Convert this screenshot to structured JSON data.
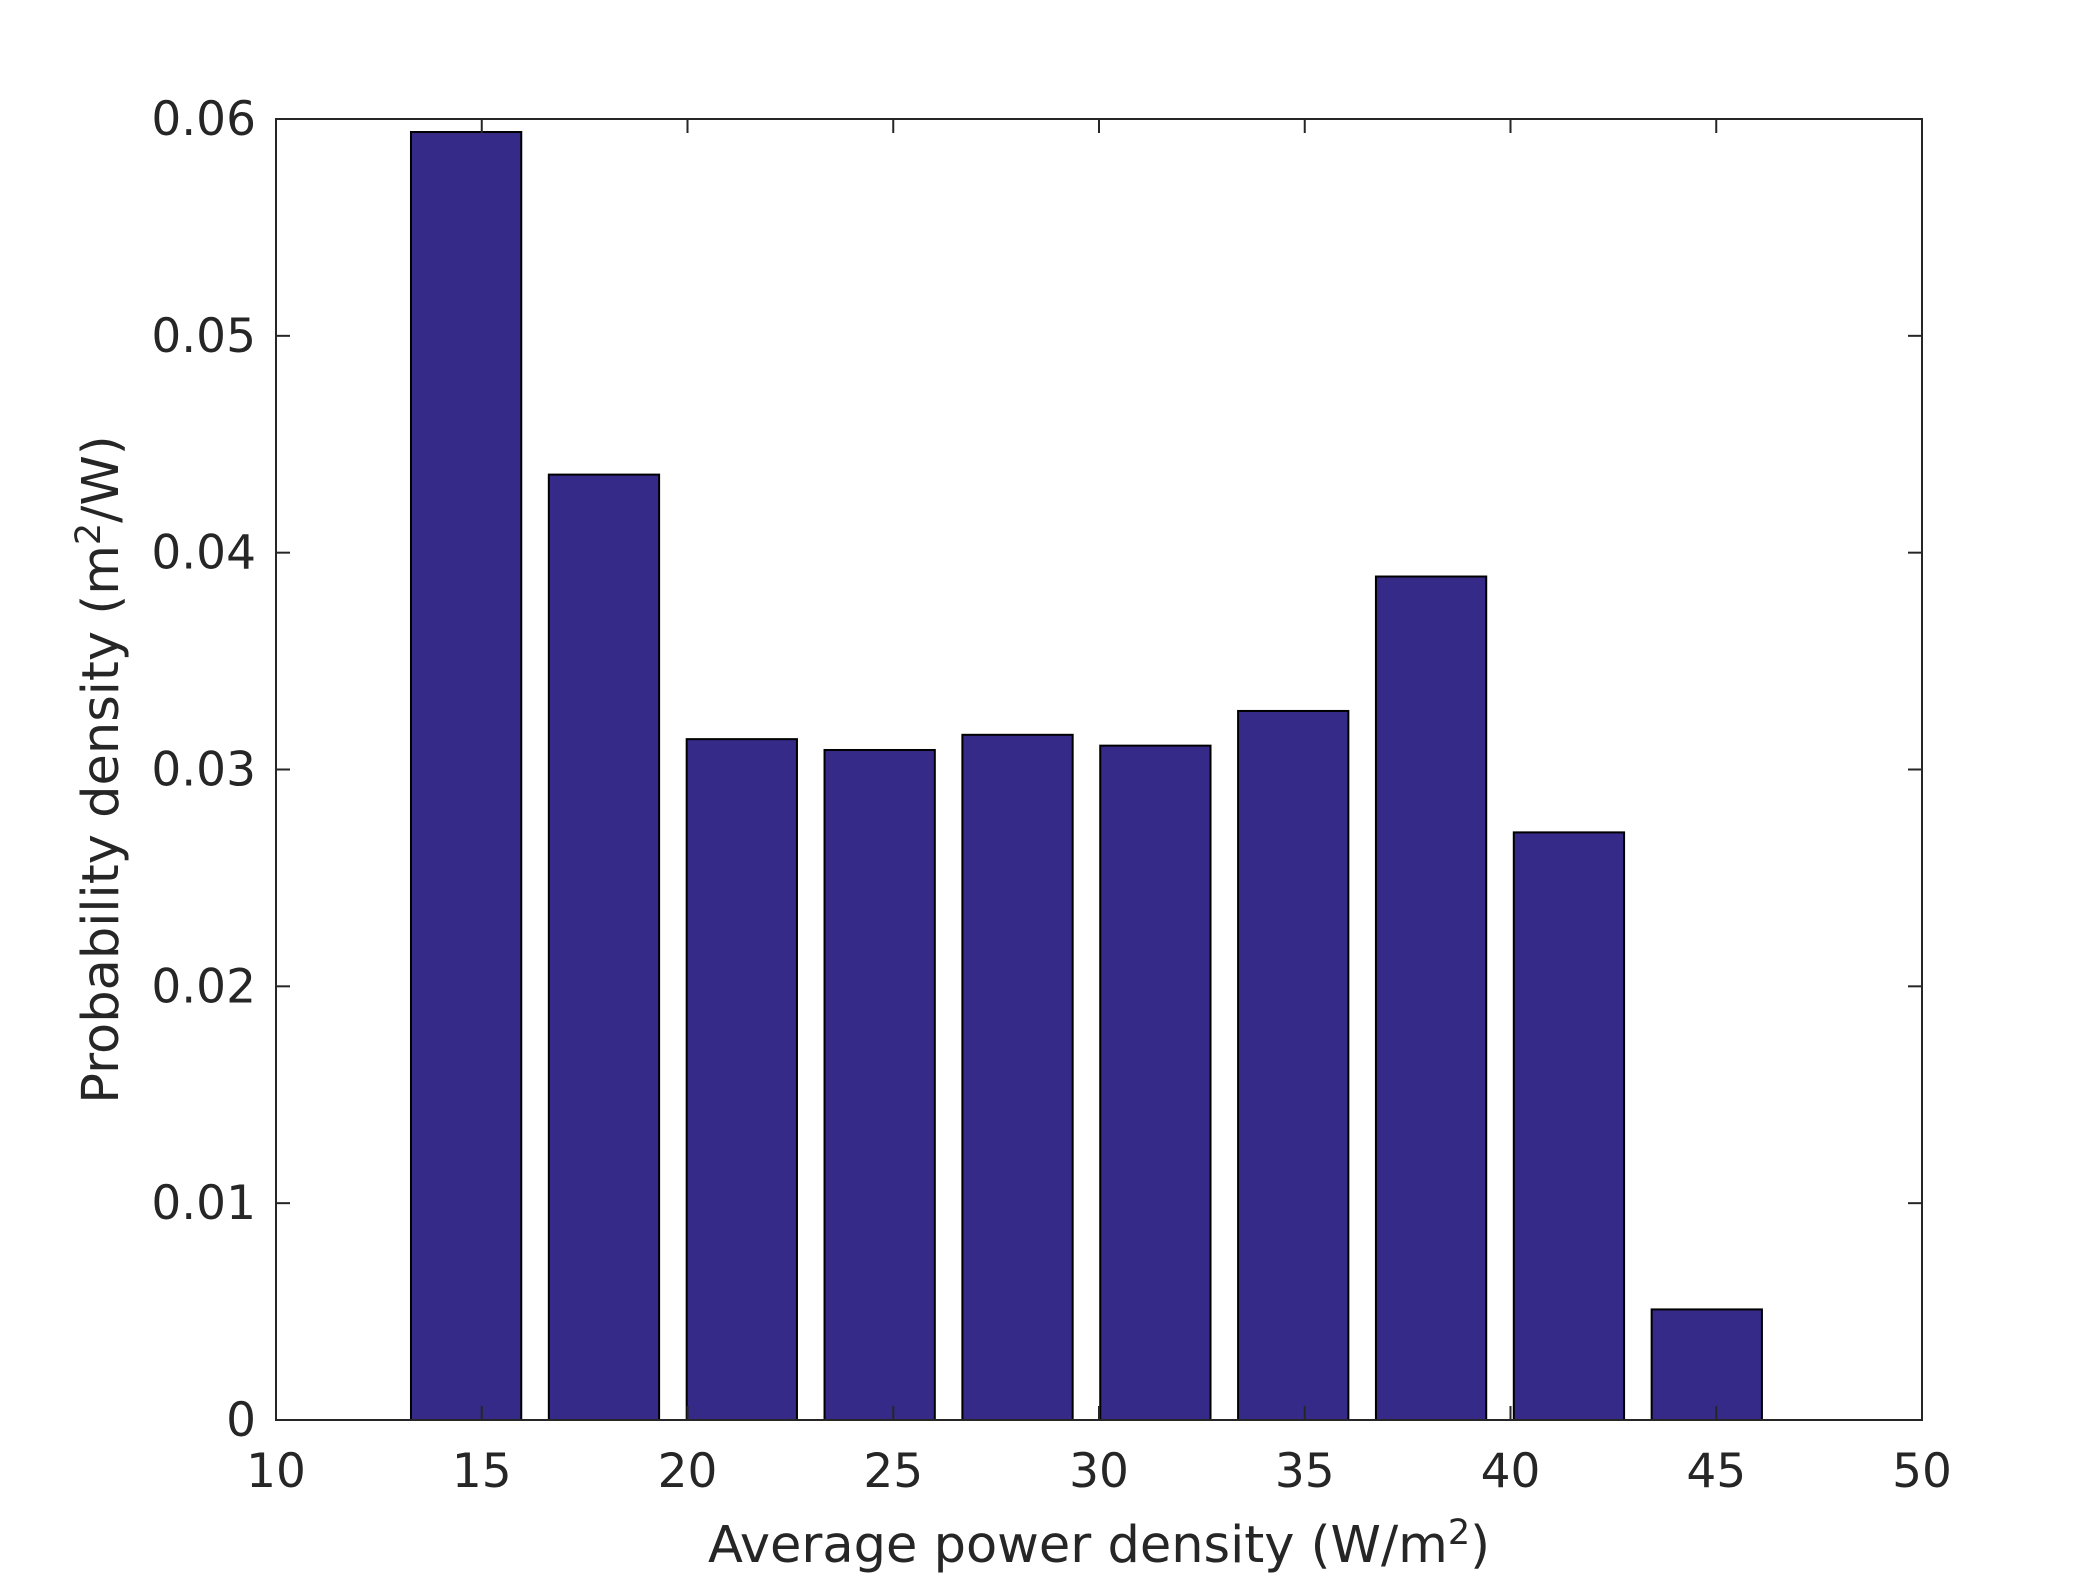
{
  "chart_data": {
    "type": "bar",
    "title": "",
    "xlabel": {
      "prefix": "Average power density (W/m",
      "superscript": "2",
      "suffix": ")"
    },
    "ylabel": {
      "prefix": "Probability density (m",
      "superscript": "2",
      "suffix": "/W)"
    },
    "xlim": [
      10,
      50
    ],
    "ylim": [
      0,
      0.06
    ],
    "xticks": [
      10,
      15,
      20,
      25,
      30,
      35,
      40,
      45,
      50
    ],
    "xtick_labels": [
      "10",
      "15",
      "20",
      "25",
      "30",
      "35",
      "40",
      "45",
      "50"
    ],
    "yticks": [
      0,
      0.01,
      0.02,
      0.03,
      0.04,
      0.05,
      0.06
    ],
    "ytick_labels": [
      "0",
      "0.01",
      "0.02",
      "0.03",
      "0.04",
      "0.05",
      "0.06"
    ],
    "bin_width": 3.35,
    "bar_width_fraction": 0.8,
    "x": [
      14.62,
      17.97,
      21.32,
      24.67,
      28.02,
      31.37,
      34.72,
      38.07,
      41.42,
      44.77
    ],
    "values": [
      0.0594,
      0.0436,
      0.0314,
      0.0309,
      0.0316,
      0.0311,
      0.0327,
      0.0389,
      0.0271,
      0.0051
    ],
    "grid": false,
    "box": true,
    "colors": {
      "bar_fill": "#352A87",
      "bar_edge": "#000000",
      "axis": "#262626"
    }
  }
}
